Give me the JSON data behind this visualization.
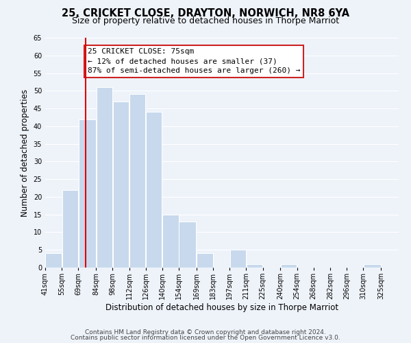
{
  "title": "25, CRICKET CLOSE, DRAYTON, NORWICH, NR8 6YA",
  "subtitle": "Size of property relative to detached houses in Thorpe Marriot",
  "xlabel": "Distribution of detached houses by size in Thorpe Marriot",
  "ylabel": "Number of detached properties",
  "bar_left_edges": [
    41,
    55,
    69,
    84,
    98,
    112,
    126,
    140,
    154,
    169,
    183,
    197,
    211,
    225,
    240,
    254,
    268,
    282,
    296,
    310
  ],
  "bar_heights": [
    4,
    22,
    42,
    51,
    47,
    49,
    44,
    15,
    13,
    4,
    0,
    5,
    1,
    0,
    1,
    0,
    0,
    0,
    0,
    1
  ],
  "bar_widths": [
    14,
    14,
    15,
    14,
    14,
    14,
    14,
    14,
    15,
    14,
    14,
    14,
    14,
    15,
    14,
    14,
    14,
    14,
    14,
    15
  ],
  "bar_color": "#c8d9ed",
  "bar_edge_color": "#ffffff",
  "tick_labels": [
    "41sqm",
    "55sqm",
    "69sqm",
    "84sqm",
    "98sqm",
    "112sqm",
    "126sqm",
    "140sqm",
    "154sqm",
    "169sqm",
    "183sqm",
    "197sqm",
    "211sqm",
    "225sqm",
    "240sqm",
    "254sqm",
    "268sqm",
    "282sqm",
    "296sqm",
    "310sqm",
    "325sqm"
  ],
  "tick_positions": [
    41,
    55,
    69,
    84,
    98,
    112,
    126,
    140,
    154,
    169,
    183,
    197,
    211,
    225,
    240,
    254,
    268,
    282,
    296,
    310,
    325
  ],
  "xlim_left": 41,
  "xlim_right": 340,
  "ylim": [
    0,
    65
  ],
  "yticks": [
    0,
    5,
    10,
    15,
    20,
    25,
    30,
    35,
    40,
    45,
    50,
    55,
    60,
    65
  ],
  "vline_x": 75,
  "vline_color": "#dd0000",
  "annotation_title": "25 CRICKET CLOSE: 75sqm",
  "annotation_line1": "← 12% of detached houses are smaller (37)",
  "annotation_line2": "87% of semi-detached houses are larger (260) →",
  "footer1": "Contains HM Land Registry data © Crown copyright and database right 2024.",
  "footer2": "Contains public sector information licensed under the Open Government Licence v3.0.",
  "background_color": "#eef3fa",
  "grid_color": "#ffffff",
  "title_fontsize": 10.5,
  "subtitle_fontsize": 9,
  "label_fontsize": 8.5,
  "tick_fontsize": 7,
  "annotation_fontsize": 8,
  "footer_fontsize": 6.5,
  "ann_box_facecolor": "#ffffff",
  "ann_box_edgecolor": "#cc2222"
}
